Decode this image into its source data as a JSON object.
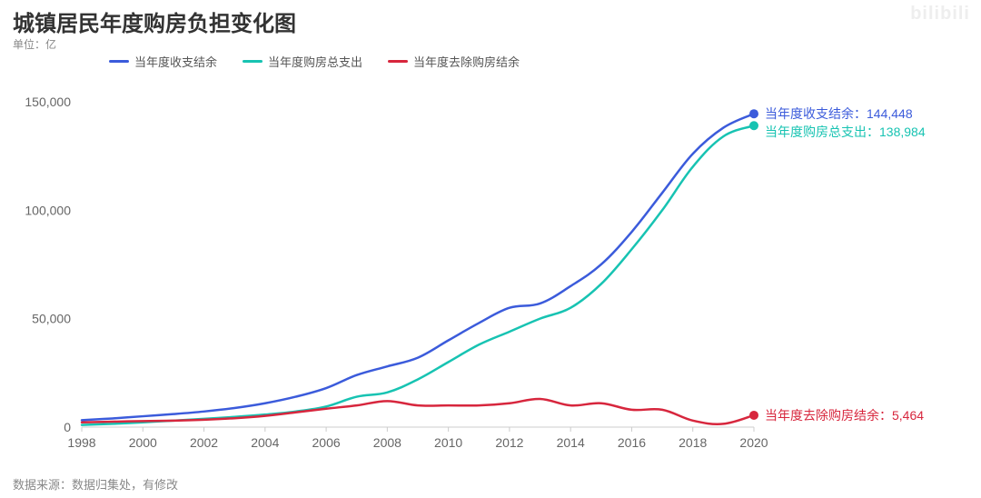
{
  "title": "城镇居民年度购房负担变化图",
  "unit_label": "单位：亿",
  "source_label": "数据来源：数据归集处，有修改",
  "watermark": "bilibili",
  "chart": {
    "type": "line",
    "background_color": "#ffffff",
    "grid_color": "#eeeeee",
    "axis_color": "#cccccc",
    "tick_label_color": "#666666",
    "tick_label_fontsize": 14,
    "title_fontsize": 24,
    "title_color": "#333333",
    "line_width": 2.5,
    "end_marker_radius": 5,
    "end_label_fontsize": 14,
    "xlim": [
      1998,
      2020
    ],
    "ylim": [
      0,
      155000
    ],
    "yticks": [
      0,
      50000,
      100000,
      150000
    ],
    "ytick_labels": [
      "0",
      "50,000",
      "100,000",
      "150,000"
    ],
    "xticks": [
      1998,
      2000,
      2002,
      2004,
      2006,
      2008,
      2010,
      2012,
      2014,
      2016,
      2018,
      2020
    ],
    "xtick_labels": [
      "1998",
      "2000",
      "2002",
      "2004",
      "2006",
      "2008",
      "2010",
      "2012",
      "2014",
      "2016",
      "2018",
      "2020"
    ],
    "legend_position": "top",
    "series": [
      {
        "id": "balance",
        "label": "当年度收支结余",
        "color": "#3b5bdb",
        "end_label": "当年度收支结余：144,448",
        "end_value": 144448,
        "values": [
          [
            1998,
            3200
          ],
          [
            1999,
            4000
          ],
          [
            2000,
            5000
          ],
          [
            2001,
            6000
          ],
          [
            2002,
            7200
          ],
          [
            2003,
            8800
          ],
          [
            2004,
            11000
          ],
          [
            2005,
            14000
          ],
          [
            2006,
            18000
          ],
          [
            2007,
            24000
          ],
          [
            2008,
            28000
          ],
          [
            2009,
            32000
          ],
          [
            2010,
            40000
          ],
          [
            2011,
            48000
          ],
          [
            2012,
            55000
          ],
          [
            2013,
            57000
          ],
          [
            2014,
            65000
          ],
          [
            2015,
            75000
          ],
          [
            2016,
            90000
          ],
          [
            2017,
            108000
          ],
          [
            2018,
            126000
          ],
          [
            2019,
            138000
          ],
          [
            2020,
            144448
          ]
        ]
      },
      {
        "id": "housing_expense",
        "label": "当年度购房总支出",
        "color": "#17c3b2",
        "end_label": "当年度购房总支出：138,984",
        "end_value": 138984,
        "values": [
          [
            1998,
            1000
          ],
          [
            1999,
            1500
          ],
          [
            2000,
            2200
          ],
          [
            2001,
            3000
          ],
          [
            2002,
            3800
          ],
          [
            2003,
            4700
          ],
          [
            2004,
            5800
          ],
          [
            2005,
            7200
          ],
          [
            2006,
            9500
          ],
          [
            2007,
            14000
          ],
          [
            2008,
            16000
          ],
          [
            2009,
            22000
          ],
          [
            2010,
            30000
          ],
          [
            2011,
            38000
          ],
          [
            2012,
            44000
          ],
          [
            2013,
            50000
          ],
          [
            2014,
            55000
          ],
          [
            2015,
            66000
          ],
          [
            2016,
            82000
          ],
          [
            2017,
            100000
          ],
          [
            2018,
            120000
          ],
          [
            2019,
            134000
          ],
          [
            2020,
            138984
          ]
        ]
      },
      {
        "id": "net_after_housing",
        "label": "当年度去除购房结余",
        "color": "#d7263d",
        "end_label": "当年度去除购房结余：5,464",
        "end_value": 5464,
        "values": [
          [
            1998,
            2200
          ],
          [
            1999,
            2500
          ],
          [
            2000,
            2800
          ],
          [
            2001,
            3000
          ],
          [
            2002,
            3400
          ],
          [
            2003,
            4100
          ],
          [
            2004,
            5200
          ],
          [
            2005,
            6800
          ],
          [
            2006,
            8500
          ],
          [
            2007,
            10000
          ],
          [
            2008,
            12000
          ],
          [
            2009,
            10000
          ],
          [
            2010,
            10000
          ],
          [
            2011,
            10000
          ],
          [
            2012,
            11000
          ],
          [
            2013,
            13000
          ],
          [
            2014,
            10000
          ],
          [
            2015,
            11000
          ],
          [
            2016,
            8000
          ],
          [
            2017,
            8000
          ],
          [
            2018,
            3000
          ],
          [
            2019,
            1500
          ],
          [
            2020,
            5464
          ]
        ]
      }
    ]
  }
}
